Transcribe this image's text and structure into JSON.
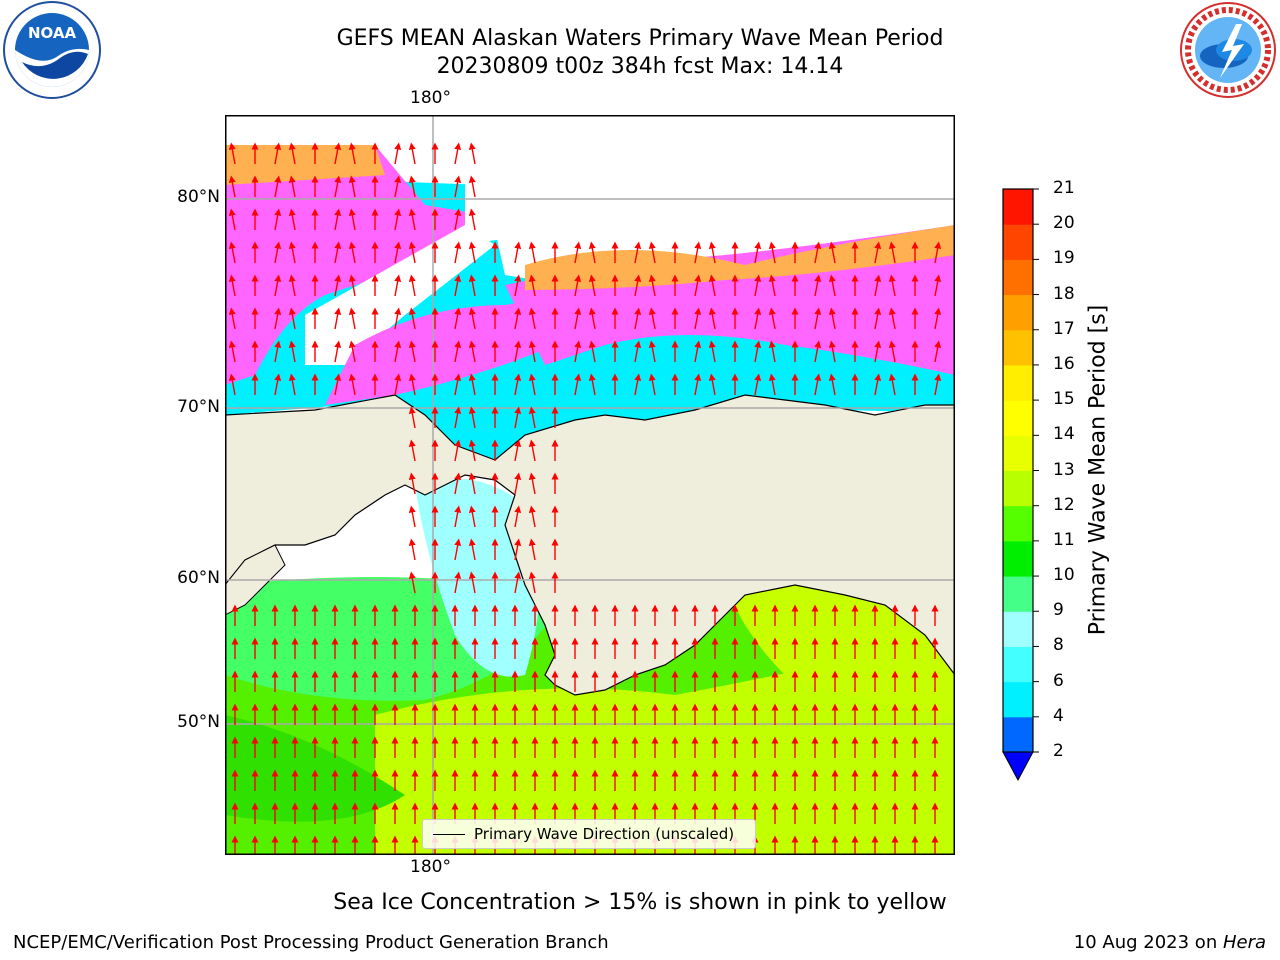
{
  "title_line1": "GEFS MEAN Alaskan Waters Primary Wave Mean Period",
  "title_line2": "20230809 t00z 384h fcst   Max: 14.14",
  "map": {
    "lon_label_top": "180°",
    "lon_label_bottom": "180°",
    "lat_labels": [
      "80°N",
      "70°N",
      "60°N",
      "50°N"
    ],
    "legend_label": "Primary Wave Direction (unscaled)",
    "vector_color": "#ff0000",
    "land_color": "#efeddc",
    "icons": [
      "noaa-logo-icon",
      "nws-logo-icon"
    ]
  },
  "colorbar": {
    "label": "Primary Wave Mean Period [s]",
    "ticks": [
      "2",
      "4",
      "6",
      "8",
      "9",
      "10",
      "11",
      "12",
      "13",
      "14",
      "15",
      "16",
      "17",
      "18",
      "19",
      "20",
      "21"
    ],
    "colors": [
      "#0068ff",
      "#00f0ff",
      "#44ffff",
      "#a0ffff",
      "#44ff88",
      "#00ee00",
      "#55ff00",
      "#b8ff00",
      "#e8ff00",
      "#ffff00",
      "#ffee00",
      "#ffc000",
      "#ffa000",
      "#ff7000",
      "#ff4500",
      "#ff1500"
    ],
    "under_color": "#0000ff"
  },
  "footnote": "Sea Ice Concentration > 15% is shown in pink to yellow",
  "footer_left": "NCEP/EMC/Verification Post Processing Product Generation Branch",
  "footer_date": "10 Aug 2023 on ",
  "footer_host": "Hera"
}
